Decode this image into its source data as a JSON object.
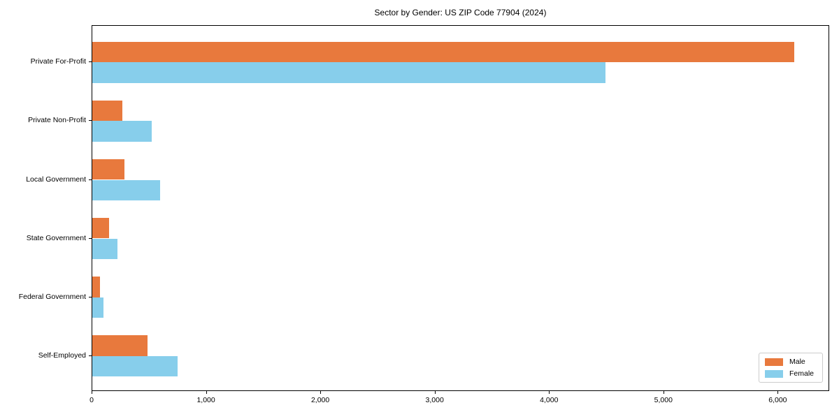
{
  "title": "Sector by Gender: US ZIP Code 77904 (2024)",
  "colors": {
    "male": "#e8793d",
    "female": "#87ceeb",
    "axis": "#000000",
    "legend_border": "#cccccc",
    "background": "#ffffff"
  },
  "legend": {
    "male_label": "Male",
    "female_label": "Female",
    "position": "lower right"
  },
  "chart_data": {
    "type": "bar",
    "orientation": "horizontal",
    "title": "Sector by Gender: US ZIP Code 77904 (2024)",
    "xlabel": "",
    "ylabel": "",
    "categories": [
      "Private For-Profit",
      "Private Non-Profit",
      "Local Government",
      "State Government",
      "Federal Government",
      "Self-Employed"
    ],
    "series": [
      {
        "name": "Male",
        "color": "#e8793d",
        "values": [
          6140,
          265,
          280,
          145,
          70,
          485
        ]
      },
      {
        "name": "Female",
        "color": "#87ceeb",
        "values": [
          4490,
          520,
          595,
          220,
          100,
          745
        ]
      }
    ],
    "xlim": [
      0,
      6450
    ],
    "xticks": [
      0,
      1000,
      2000,
      3000,
      4000,
      5000,
      6000
    ],
    "xtick_labels": [
      "0",
      "1,000",
      "2,000",
      "3,000",
      "4,000",
      "5,000",
      "6,000"
    ],
    "grid": false,
    "legend_position": "lower right"
  }
}
